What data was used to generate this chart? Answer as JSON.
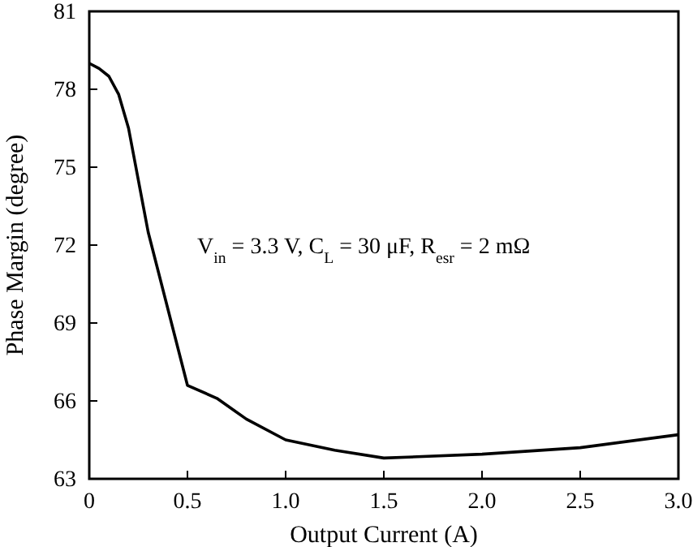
{
  "chart_data": {
    "type": "line",
    "xlabel": "Output Current (A)",
    "ylabel": "Phase Margin (degree)",
    "annotations": [
      "V$_{in}$ = 3.3 V, C$_{L}$ = 30 μF, R$_{esr}$ = 2 mΩ"
    ],
    "series": [
      {
        "color": "#000000",
        "x": [
          0,
          0.05,
          0.1,
          0.15,
          0.2,
          0.3,
          0.5,
          0.65,
          0.8,
          1.0,
          1.25,
          1.5,
          2.0,
          2.5,
          3.0
        ],
        "values": [
          79,
          78.8,
          78.5,
          77.8,
          76.5,
          72.5,
          66.6,
          66.1,
          65.3,
          64.5,
          64.1,
          63.8,
          63.95,
          64.2,
          64.7
        ]
      }
    ],
    "xlim": [
      0,
      3
    ],
    "xticks": [
      0,
      {
        "value": 0.5,
        "label": "0.5"
      },
      {
        "value": 1,
        "label": "1.0"
      },
      {
        "value": 1.5,
        "label": "1.5"
      },
      {
        "value": 2,
        "label": "2.0"
      },
      {
        "value": 2.5,
        "label": "2.5"
      },
      {
        "value": 3,
        "label": "3.0"
      }
    ],
    "ylim": [
      63,
      81
    ],
    "yticks": [
      63,
      66,
      69,
      72,
      75,
      78,
      81
    ],
    "grid": false,
    "marker": "none",
    "line_style": "solid"
  }
}
